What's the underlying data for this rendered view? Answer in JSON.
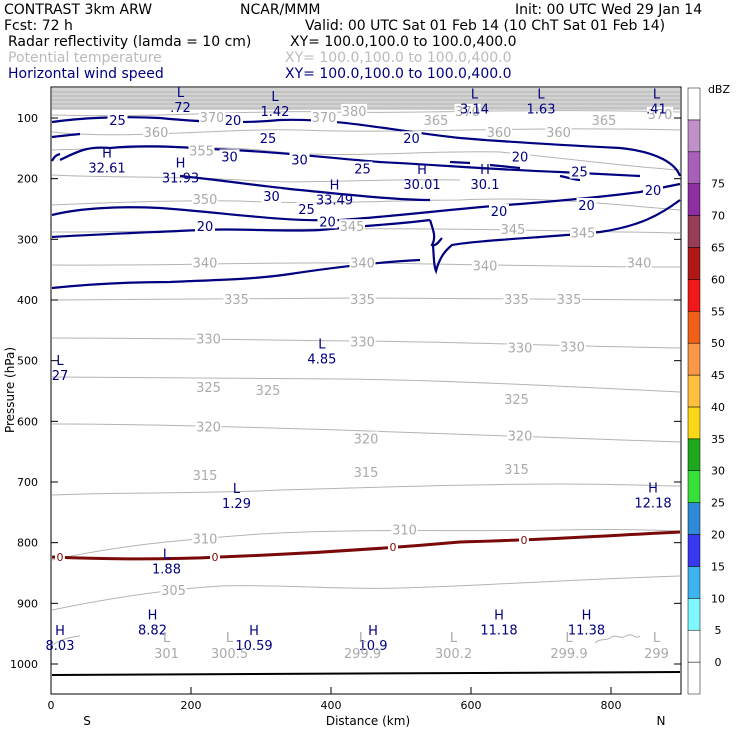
{
  "header": {
    "line1_left": "CONTRAST  3km ARW",
    "line1_mid": "NCAR/MMM",
    "line1_right": "Init: 00 UTC Wed 29 Jan 14",
    "line2_left": "Fcst:    72 h",
    "line2_right": "Valid: 00 UTC Sat 01 Feb 14 (10 ChT Sat 01 Feb 14)",
    "fields": [
      {
        "name": "Radar reflectivity (lamda = 10 cm)",
        "xy": "XY= 100.0,100.0 to 100.0,400.0",
        "color": "#000000"
      },
      {
        "name": "Potential temperature",
        "xy": "XY= 100.0,100.0 to 100.0,400.0",
        "color": "#bbbbbb"
      },
      {
        "name": "Horizontal wind speed",
        "xy": "XY= 100.0,100.0 to 100.0,400.0",
        "color": "#000080"
      }
    ]
  },
  "chart_data": {
    "type": "cross-section contour",
    "xlabel": "Distance (km)",
    "ylabel": "Pressure (hPa)",
    "xlim": [
      0,
      900
    ],
    "ylim": [
      1050,
      60
    ],
    "x_ticks": [
      0,
      200,
      400,
      600,
      800
    ],
    "y_ticks": [
      100,
      200,
      300,
      400,
      500,
      600,
      700,
      800,
      900,
      1000
    ],
    "endpoints": {
      "left": "S",
      "right": "N"
    },
    "reflectivity_freezing_line_label": "0",
    "theta_contour_labels": [
      {
        "v": "380",
        "x": 433,
        "p": 90
      },
      {
        "v": "370",
        "x": 230,
        "p": 100
      },
      {
        "v": "370",
        "x": 390,
        "p": 100
      },
      {
        "v": "365",
        "x": 550,
        "p": 105
      },
      {
        "v": "370",
        "x": 595,
        "p": 90
      },
      {
        "v": "365",
        "x": 790,
        "p": 105
      },
      {
        "v": "370",
        "x": 870,
        "p": 95
      },
      {
        "v": "360",
        "x": 640,
        "p": 125
      },
      {
        "v": "360",
        "x": 725,
        "p": 125
      },
      {
        "v": "360",
        "x": 150,
        "p": 125
      },
      {
        "v": "355",
        "x": 215,
        "p": 155
      },
      {
        "v": "350",
        "x": 220,
        "p": 235
      },
      {
        "v": "345",
        "x": 430,
        "p": 280
      },
      {
        "v": "345",
        "x": 660,
        "p": 285
      },
      {
        "v": "345",
        "x": 760,
        "p": 290
      },
      {
        "v": "340",
        "x": 220,
        "p": 340
      },
      {
        "v": "340",
        "x": 445,
        "p": 340
      },
      {
        "v": "340",
        "x": 620,
        "p": 345
      },
      {
        "v": "340",
        "x": 840,
        "p": 340
      },
      {
        "v": "335",
        "x": 265,
        "p": 400
      },
      {
        "v": "335",
        "x": 445,
        "p": 400
      },
      {
        "v": "335",
        "x": 665,
        "p": 400
      },
      {
        "v": "335",
        "x": 740,
        "p": 400
      },
      {
        "v": "330",
        "x": 225,
        "p": 465
      },
      {
        "v": "330",
        "x": 445,
        "p": 470
      },
      {
        "v": "330",
        "x": 670,
        "p": 480
      },
      {
        "v": "330",
        "x": 745,
        "p": 478
      },
      {
        "v": "325",
        "x": 225,
        "p": 545
      },
      {
        "v": "325",
        "x": 310,
        "p": 550
      },
      {
        "v": "325",
        "x": 665,
        "p": 565
      },
      {
        "v": "320",
        "x": 225,
        "p": 610
      },
      {
        "v": "320",
        "x": 450,
        "p": 630
      },
      {
        "v": "320",
        "x": 670,
        "p": 625
      },
      {
        "v": "315",
        "x": 220,
        "p": 690
      },
      {
        "v": "315",
        "x": 450,
        "p": 685
      },
      {
        "v": "315",
        "x": 665,
        "p": 680
      },
      {
        "v": "310",
        "x": 220,
        "p": 795
      },
      {
        "v": "310",
        "x": 505,
        "p": 780
      },
      {
        "v": "305",
        "x": 175,
        "p": 880
      }
    ],
    "wind_contour_labels": [
      {
        "v": "25",
        "x": 95,
        "p": 105
      },
      {
        "v": "20",
        "x": 260,
        "p": 105
      },
      {
        "v": "25",
        "x": 310,
        "p": 135
      },
      {
        "v": "20",
        "x": 515,
        "p": 135
      },
      {
        "v": "30",
        "x": 255,
        "p": 165
      },
      {
        "v": "30",
        "x": 355,
        "p": 170
      },
      {
        "v": "25",
        "x": 445,
        "p": 185
      },
      {
        "v": "20",
        "x": 670,
        "p": 165
      },
      {
        "v": "25",
        "x": 755,
        "p": 190
      },
      {
        "v": "30",
        "x": 315,
        "p": 230
      },
      {
        "v": "25",
        "x": 365,
        "p": 252
      },
      {
        "v": "20",
        "x": 860,
        "p": 220
      },
      {
        "v": "20",
        "x": 765,
        "p": 245
      },
      {
        "v": "20",
        "x": 640,
        "p": 255
      },
      {
        "v": "20",
        "x": 220,
        "p": 280
      },
      {
        "v": "20",
        "x": 395,
        "p": 272
      }
    ],
    "wind_extrema": [
      {
        "t": "L",
        "v": ".72",
        "x": 185,
        "p": 65
      },
      {
        "t": "L",
        "v": "1.42",
        "x": 320,
        "p": 72
      },
      {
        "t": "L",
        "v": "3.14",
        "x": 605,
        "p": 68
      },
      {
        "t": "L",
        "v": "1.63",
        "x": 700,
        "p": 68
      },
      {
        "t": "L",
        "v": ".41",
        "x": 865,
        "p": 68
      },
      {
        "t": "H",
        "v": "32.61",
        "x": 80,
        "p": 165
      },
      {
        "t": "H",
        "v": "31.93",
        "x": 185,
        "p": 182
      },
      {
        "t": "H",
        "v": "33.49",
        "x": 405,
        "p": 218
      },
      {
        "t": "H",
        "v": "30.01",
        "x": 530,
        "p": 192
      },
      {
        "t": "H",
        "v": "30.1",
        "x": 620,
        "p": 192
      },
      {
        "t": "L",
        "v": "4.85",
        "x": 387,
        "p": 480
      },
      {
        "t": "L",
        "v": "27",
        "x": 0,
        "p": 507
      },
      {
        "t": "L",
        "v": "1.29",
        "x": 265,
        "p": 718
      },
      {
        "t": "H",
        "v": "12.18",
        "x": 860,
        "p": 717
      },
      {
        "t": "L",
        "v": "1.88",
        "x": 165,
        "p": 826
      },
      {
        "t": "H",
        "v": "8.82",
        "x": 145,
        "p": 927
      },
      {
        "t": "H",
        "v": "8.03",
        "x": 10,
        "p": 952
      },
      {
        "t": "H",
        "v": "10.59",
        "x": 290,
        "p": 952
      },
      {
        "t": "H",
        "v": "10.9",
        "x": 460,
        "p": 952
      },
      {
        "t": "H",
        "v": "11.18",
        "x": 640,
        "p": 927
      },
      {
        "t": "H",
        "v": "11.38",
        "x": 765,
        "p": 927
      }
    ],
    "theta_extrema": [
      {
        "t": "L",
        "v": "301",
        "x": 165,
        "p": 1000
      },
      {
        "t": "L",
        "v": "300.5",
        "x": 255,
        "p": 1000
      },
      {
        "t": "L",
        "v": "299.9",
        "x": 445,
        "p": 1000
      },
      {
        "t": "L",
        "v": "300.2",
        "x": 575,
        "p": 1000
      },
      {
        "t": "L",
        "v": "299.9",
        "x": 740,
        "p": 1000
      },
      {
        "t": "L",
        "v": "299",
        "x": 865,
        "p": 1000
      }
    ],
    "colorbar": {
      "units": "dBZ",
      "levels": [
        {
          "v": "0",
          "color": "#ffffff"
        },
        {
          "v": "5",
          "color": "#ffffff"
        },
        {
          "v": "10",
          "color": "#7ff8ff"
        },
        {
          "v": "15",
          "color": "#3db4ef"
        },
        {
          "v": "20",
          "color": "#3838ef"
        },
        {
          "v": "25",
          "color": "#2f8ad8"
        },
        {
          "v": "30",
          "color": "#3ae03a"
        },
        {
          "v": "35",
          "color": "#1ea81e"
        },
        {
          "v": "40",
          "color": "#f8d818"
        },
        {
          "v": "45",
          "color": "#ffc040"
        },
        {
          "v": "50",
          "color": "#f89848"
        },
        {
          "v": "55",
          "color": "#f06018"
        },
        {
          "v": "60",
          "color": "#f01818"
        },
        {
          "v": "65",
          "color": "#b01818"
        },
        {
          "v": "70",
          "color": "#983c58"
        },
        {
          "v": "75",
          "color": "#8e2ea0"
        },
        {
          "v": "",
          "color": "#a860b8"
        },
        {
          "v": "",
          "color": "#c090c8"
        },
        {
          "v": "",
          "color": "#ffffff"
        }
      ]
    }
  }
}
